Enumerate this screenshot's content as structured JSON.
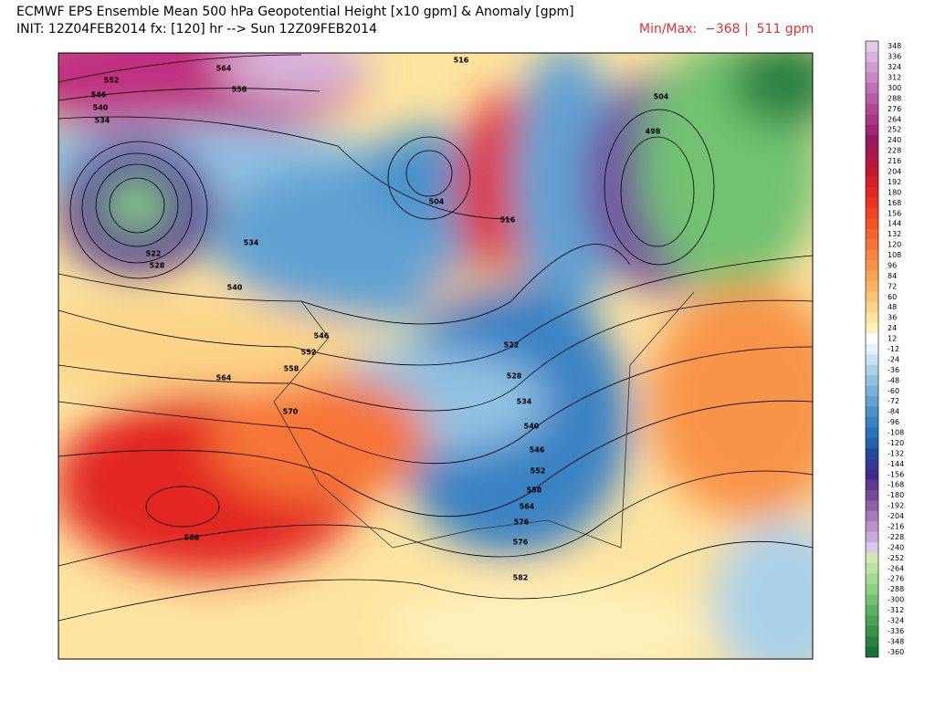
{
  "header": {
    "title": "ECMWF EPS Ensemble Mean 500 hPa Geopotential Height [x10 gpm] & Anomaly [gpm]",
    "init": "INIT: 12Z04FEB2014 fx: [120] hr --> Sun 12Z09FEB2014",
    "minmax": "Min/Max:  −368 |  511 gpm"
  },
  "contour_labels": [
    "564",
    "552",
    "546",
    "540",
    "534",
    "558",
    "504",
    "516",
    "516",
    "522",
    "528",
    "534",
    "540",
    "546",
    "552",
    "558",
    "564",
    "570",
    "588",
    "504",
    "498",
    "522",
    "528",
    "534",
    "540",
    "546",
    "552",
    "558",
    "564",
    "576",
    "576",
    "582"
  ],
  "colorbar": [
    {
      "label": "348",
      "color": "#e2cce2"
    },
    {
      "label": "336",
      "color": "#d8b4da"
    },
    {
      "label": "324",
      "color": "#cf9ed0"
    },
    {
      "label": "312",
      "color": "#c888c6"
    },
    {
      "label": "300",
      "color": "#c070b6"
    },
    {
      "label": "288",
      "color": "#b85ca6"
    },
    {
      "label": "276",
      "color": "#b04892"
    },
    {
      "label": "264",
      "color": "#a83882"
    },
    {
      "label": "252",
      "color": "#a02872"
    },
    {
      "label": "240",
      "color": "#981862"
    },
    {
      "label": "228",
      "color": "#a21852"
    },
    {
      "label": "216",
      "color": "#b41842"
    },
    {
      "label": "204",
      "color": "#c41832"
    },
    {
      "label": "192",
      "color": "#d42028"
    },
    {
      "label": "180",
      "color": "#e22620"
    },
    {
      "label": "168",
      "color": "#ea3420"
    },
    {
      "label": "156",
      "color": "#f04422"
    },
    {
      "label": "144",
      "color": "#f25428"
    },
    {
      "label": "132",
      "color": "#f46430"
    },
    {
      "label": "120",
      "color": "#f67438"
    },
    {
      "label": "108",
      "color": "#f78440"
    },
    {
      "label": "96",
      "color": "#f89448"
    },
    {
      "label": "84",
      "color": "#f9a452"
    },
    {
      "label": "72",
      "color": "#fab462"
    },
    {
      "label": "60",
      "color": "#fbc474"
    },
    {
      "label": "48",
      "color": "#fcd488"
    },
    {
      "label": "36",
      "color": "#fde4a0"
    },
    {
      "label": "24",
      "color": "#fef2bc"
    },
    {
      "label": "12",
      "color": "#ffffff"
    },
    {
      "label": "-12",
      "color": "#e4f2fa"
    },
    {
      "label": "-24",
      "color": "#c8e2f2"
    },
    {
      "label": "-36",
      "color": "#acd2ea"
    },
    {
      "label": "-48",
      "color": "#92c2e2"
    },
    {
      "label": "-60",
      "color": "#7ab2da"
    },
    {
      "label": "-72",
      "color": "#62a2d2"
    },
    {
      "label": "-84",
      "color": "#4a92ca"
    },
    {
      "label": "-96",
      "color": "#3a82c2"
    },
    {
      "label": "-108",
      "color": "#2a72b8"
    },
    {
      "label": "-120",
      "color": "#2262aa"
    },
    {
      "label": "-132",
      "color": "#224a9a"
    },
    {
      "label": "-144",
      "color": "#323a92"
    },
    {
      "label": "-156",
      "color": "#422a8a"
    },
    {
      "label": "-168",
      "color": "#5a3a92"
    },
    {
      "label": "-180",
      "color": "#724a9a"
    },
    {
      "label": "-192",
      "color": "#8a62aa"
    },
    {
      "label": "-204",
      "color": "#a27aba"
    },
    {
      "label": "-216",
      "color": "#ba92ca"
    },
    {
      "label": "-228",
      "color": "#caaada"
    },
    {
      "label": "-240",
      "color": "#dacaea"
    },
    {
      "label": "-252",
      "color": "#d2eab2"
    },
    {
      "label": "-264",
      "color": "#bae2a2"
    },
    {
      "label": "-276",
      "color": "#a2da92"
    },
    {
      "label": "-288",
      "color": "#8ad282"
    },
    {
      "label": "-300",
      "color": "#72c272"
    },
    {
      "label": "-312",
      "color": "#5ab262"
    },
    {
      "label": "-324",
      "color": "#4aa252"
    },
    {
      "label": "-336",
      "color": "#3a924a"
    },
    {
      "label": "-348",
      "color": "#2a8242"
    },
    {
      "label": "-360",
      "color": "#1a723a"
    }
  ]
}
